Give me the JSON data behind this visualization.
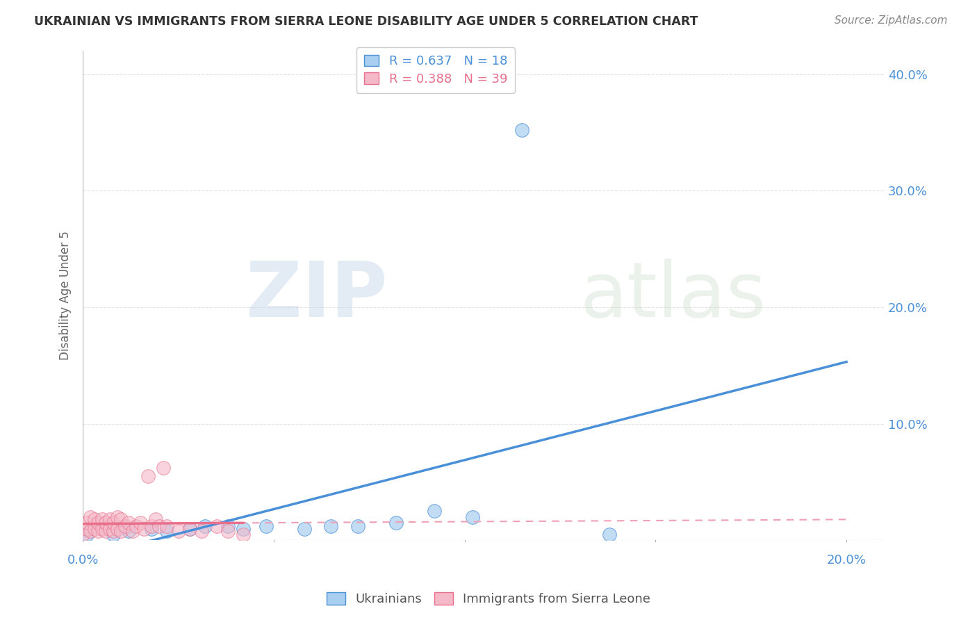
{
  "title": "UKRAINIAN VS IMMIGRANTS FROM SIERRA LEONE DISABILITY AGE UNDER 5 CORRELATION CHART",
  "source": "Source: ZipAtlas.com",
  "ylabel": "Disability Age Under 5",
  "legend_blue_label": "Ukrainians",
  "legend_pink_label": "Immigrants from Sierra Leone",
  "blue_R": 0.637,
  "blue_N": 18,
  "pink_R": 0.388,
  "pink_N": 39,
  "blue_color": "#A8CEF0",
  "pink_color": "#F5B8C8",
  "blue_line_color": "#4A90D9",
  "pink_line_color": "#E8708A",
  "pink_dash_color": "#F0A0B5",
  "ylim": [
    0.0,
    0.42
  ],
  "xlim": [
    0.0,
    0.21
  ],
  "yticks": [
    0.0,
    0.1,
    0.2,
    0.3,
    0.4
  ],
  "ytick_labels": [
    "",
    "10.0%",
    "20.0%",
    "30.0%",
    "40.0%"
  ],
  "xticks": [
    0.0,
    0.05,
    0.1,
    0.15,
    0.2
  ],
  "blue_x": [
    0.001,
    0.008,
    0.012,
    0.018,
    0.022,
    0.028,
    0.032,
    0.038,
    0.042,
    0.048,
    0.058,
    0.065,
    0.072,
    0.082,
    0.092,
    0.102,
    0.115,
    0.138
  ],
  "blue_y": [
    0.005,
    0.005,
    0.008,
    0.01,
    0.008,
    0.01,
    0.012,
    0.012,
    0.01,
    0.012,
    0.01,
    0.012,
    0.012,
    0.015,
    0.025,
    0.02,
    0.352,
    0.005
  ],
  "pink_x": [
    0.0,
    0.001,
    0.001,
    0.002,
    0.002,
    0.003,
    0.003,
    0.004,
    0.004,
    0.005,
    0.005,
    0.006,
    0.006,
    0.007,
    0.007,
    0.008,
    0.008,
    0.009,
    0.009,
    0.01,
    0.01,
    0.011,
    0.012,
    0.013,
    0.014,
    0.015,
    0.016,
    0.017,
    0.018,
    0.019,
    0.02,
    0.021,
    0.022,
    0.025,
    0.028,
    0.031,
    0.035,
    0.038,
    0.042
  ],
  "pink_y": [
    0.005,
    0.01,
    0.015,
    0.008,
    0.02,
    0.01,
    0.018,
    0.008,
    0.015,
    0.01,
    0.018,
    0.008,
    0.015,
    0.01,
    0.018,
    0.008,
    0.015,
    0.01,
    0.02,
    0.008,
    0.018,
    0.012,
    0.015,
    0.008,
    0.012,
    0.015,
    0.01,
    0.055,
    0.012,
    0.018,
    0.012,
    0.062,
    0.012,
    0.008,
    0.01,
    0.008,
    0.012,
    0.008,
    0.005
  ],
  "bg_color": "#FFFFFF",
  "grid_color": "#CCCCCC",
  "title_color": "#333333",
  "tick_color": "#4A90D9"
}
